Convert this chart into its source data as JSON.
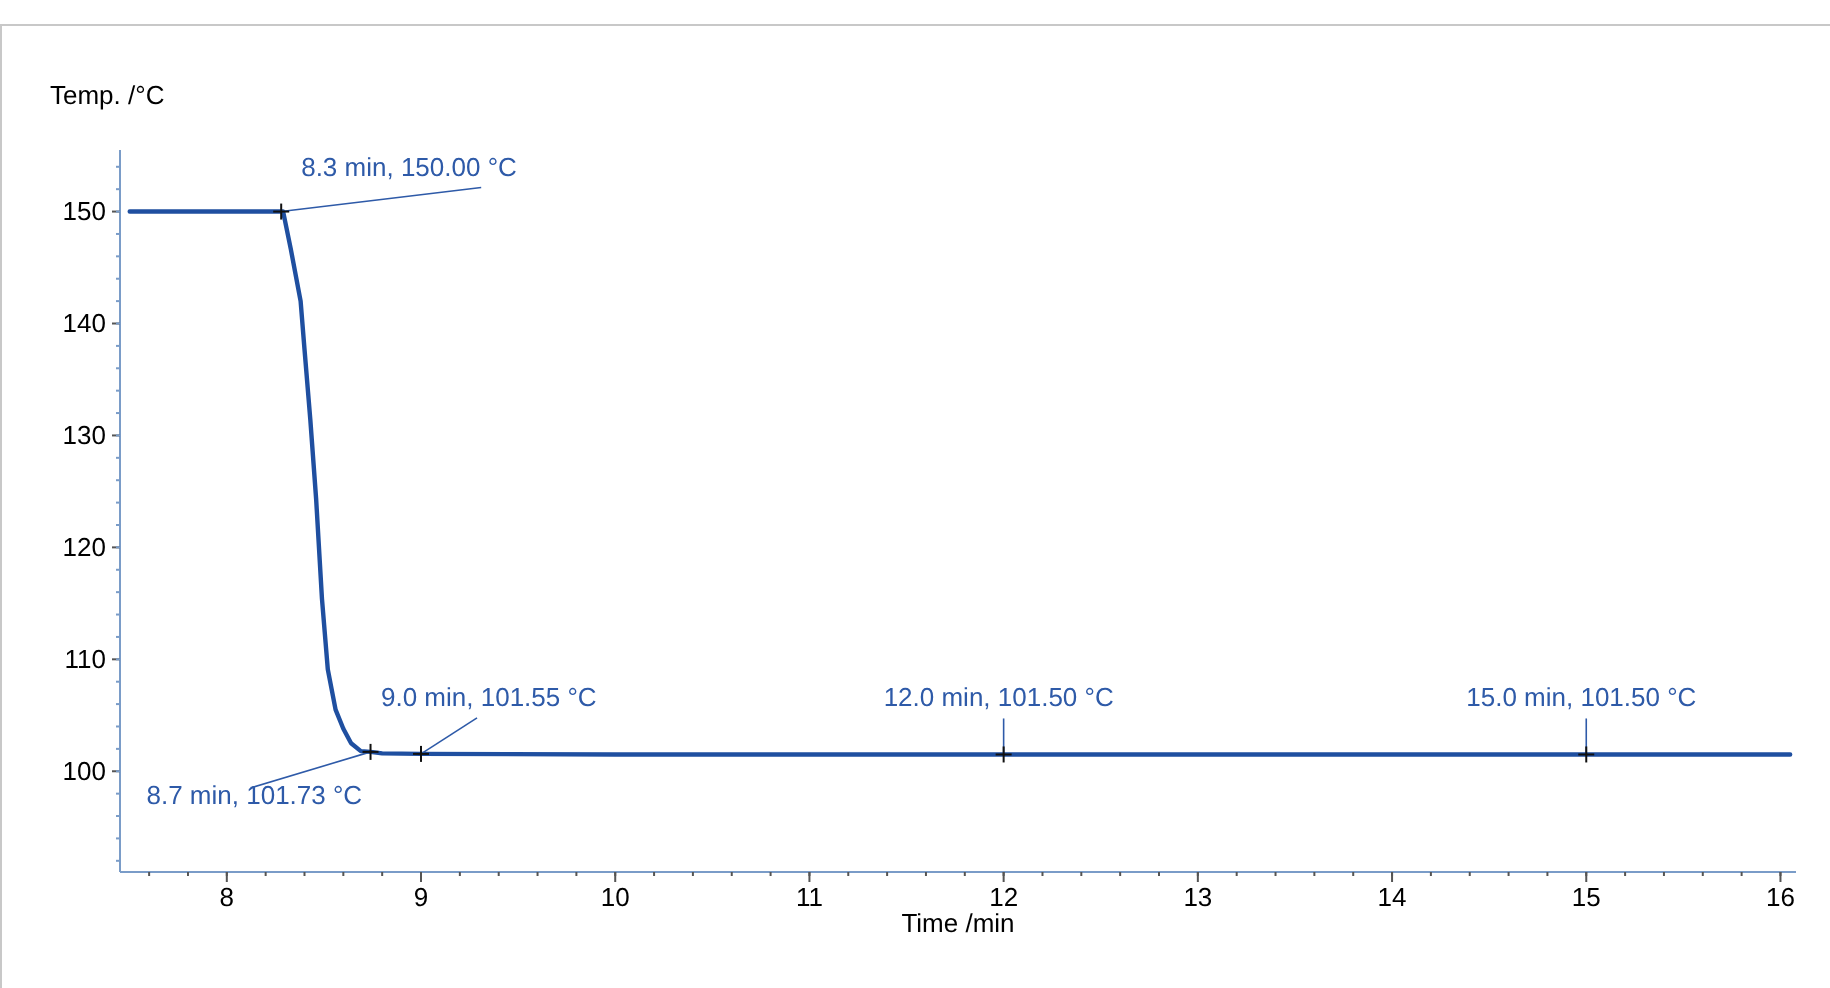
{
  "chart_data": {
    "type": "line",
    "xlabel": "Time /min",
    "ylabel": "Temp. /°C",
    "xlim": [
      7.45,
      16.08
    ],
    "xticks": [
      8,
      9,
      10,
      11,
      12,
      13,
      14,
      15,
      16
    ],
    "ylim": [
      91,
      155.5
    ],
    "yticks": [
      100,
      110,
      120,
      130,
      140,
      150
    ],
    "grid": false,
    "marker": "none",
    "line_style": "solid",
    "series": [
      {
        "color": "#1f4fa0",
        "x": [
          7.5,
          8.0,
          8.28,
          8.29,
          8.33,
          8.38,
          8.4,
          8.43,
          8.46,
          8.49,
          8.52,
          8.56,
          8.6,
          8.64,
          8.69,
          8.74,
          8.8,
          9.0,
          10,
          11,
          11.6,
          11.7,
          12,
          13,
          14,
          14.6,
          15,
          15.6,
          16.05
        ],
        "values": [
          150,
          150,
          150,
          150,
          146.6,
          142,
          137.7,
          131.4,
          124.3,
          115.4,
          109.1,
          105.5,
          103.8,
          102.5,
          101.8,
          101.73,
          101.6,
          101.55,
          101.5,
          101.5,
          101.5,
          101.5,
          101.5,
          101.5,
          101.5,
          101.5,
          101.5,
          101.5,
          101.5
        ]
      }
    ],
    "annotations": [
      {
        "text": "8.3 min, 150.00 °C",
        "x": 8.28,
        "y": 150
      },
      {
        "text": "8.7 min, 101.73 °C",
        "x": 8.74,
        "y": 101.73
      },
      {
        "text": "9.0 min, 101.55 °C",
        "x": 9.0,
        "y": 101.55
      },
      {
        "text": "12.0 min, 101.50 °C",
        "x": 12.0,
        "y": 101.5
      },
      {
        "text": "15.0 min, 101.50 °C",
        "x": 15.0,
        "y": 101.5
      }
    ]
  }
}
